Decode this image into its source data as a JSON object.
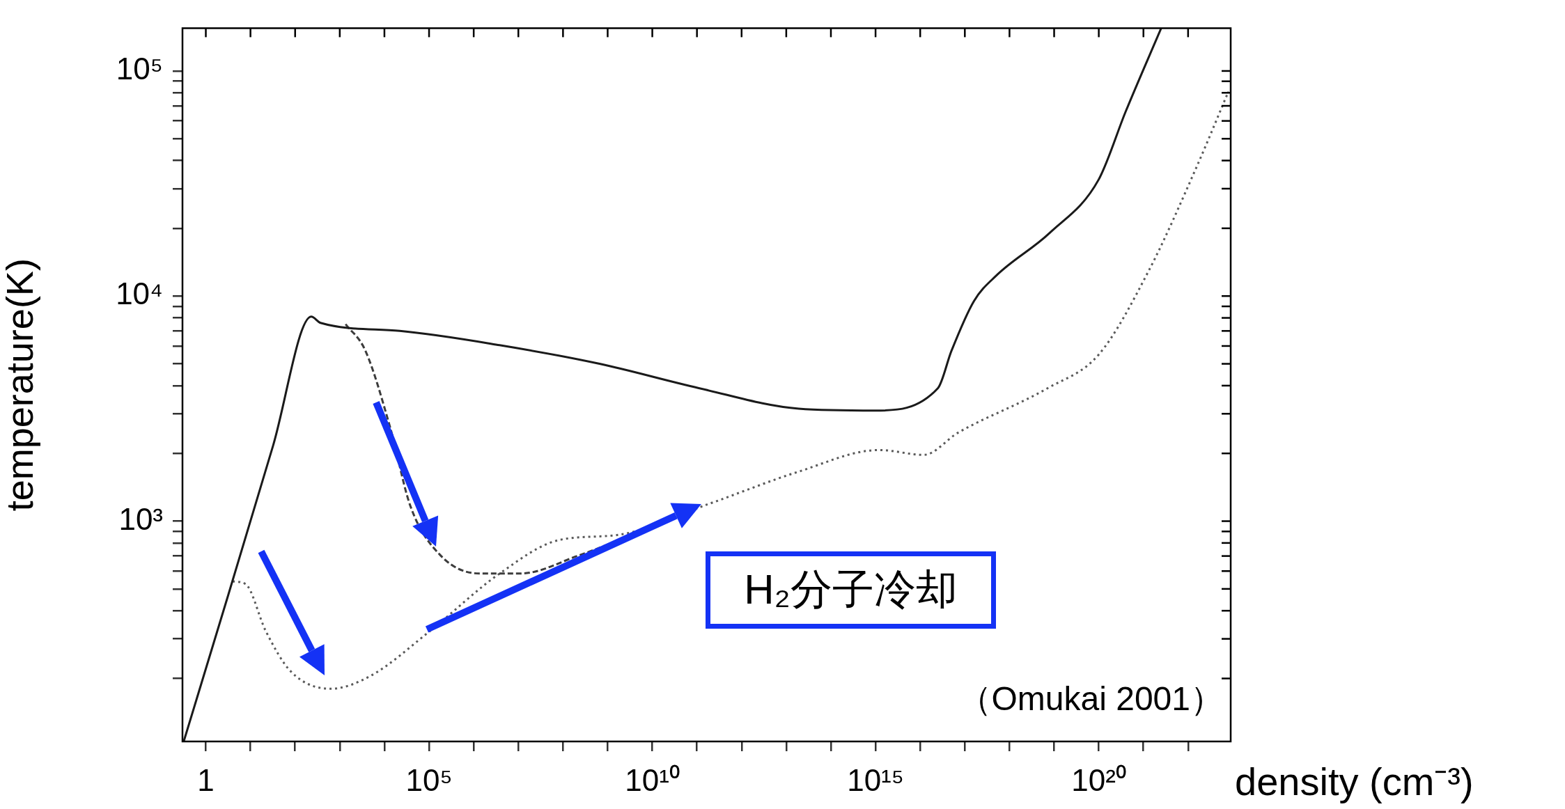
{
  "chart_data": {
    "type": "line",
    "xlabel": "density (cm⁻³)",
    "ylabel": "temperature(K)",
    "annotations": [
      "H₂分子冷却",
      "（Omukai 2001）"
    ],
    "log": "xy",
    "grid": false,
    "legend": false,
    "marker": "none",
    "xlim": [
      0.32,
      9e+22
    ],
    "ylim": [
      105,
      155000
    ],
    "xticks": [
      {
        "value": 1,
        "label": "1"
      },
      {
        "value": 10,
        "label": null
      },
      {
        "value": 100,
        "label": null
      },
      {
        "value": 1000,
        "label": null
      },
      {
        "value": 10000,
        "label": null
      },
      {
        "value": 100000.0,
        "label": "10⁵"
      },
      {
        "value": 1000000.0,
        "label": null
      },
      {
        "value": 10000000.0,
        "label": null
      },
      {
        "value": 100000000.0,
        "label": null
      },
      {
        "value": 1000000000.0,
        "label": null
      },
      {
        "value": 10000000000.0,
        "label": "10¹⁰"
      },
      {
        "value": 100000000000.0,
        "label": null
      },
      {
        "value": 1000000000000.0,
        "label": null
      },
      {
        "value": 10000000000000.0,
        "label": null
      },
      {
        "value": 100000000000000.0,
        "label": null
      },
      {
        "value": 1000000000000000.0,
        "label": "10¹⁵"
      },
      {
        "value": 1e+16,
        "label": null
      },
      {
        "value": 1e+17,
        "label": null
      },
      {
        "value": 1e+18,
        "label": null
      },
      {
        "value": 1e+19,
        "label": null
      },
      {
        "value": 1e+20,
        "label": "10²⁰"
      },
      {
        "value": 1e+21,
        "label": null
      },
      {
        "value": 1e+22,
        "label": null
      }
    ],
    "yticks": [
      {
        "value": 200,
        "label": null
      },
      {
        "value": 300,
        "label": null
      },
      {
        "value": 400,
        "label": null
      },
      {
        "value": 500,
        "label": null
      },
      {
        "value": 600,
        "label": null
      },
      {
        "value": 700,
        "label": null
      },
      {
        "value": 800,
        "label": null
      },
      {
        "value": 900,
        "label": null
      },
      {
        "value": 1000,
        "label": "10³"
      },
      {
        "value": 2000,
        "label": null
      },
      {
        "value": 3000,
        "label": null
      },
      {
        "value": 4000,
        "label": null
      },
      {
        "value": 5000,
        "label": null
      },
      {
        "value": 6000,
        "label": null
      },
      {
        "value": 7000,
        "label": null
      },
      {
        "value": 8000,
        "label": null
      },
      {
        "value": 9000,
        "label": null
      },
      {
        "value": 10000,
        "label": "10⁴"
      },
      {
        "value": 20000,
        "label": null
      },
      {
        "value": 30000,
        "label": null
      },
      {
        "value": 40000,
        "label": null
      },
      {
        "value": 50000,
        "label": null
      },
      {
        "value": 60000,
        "label": null
      },
      {
        "value": 70000,
        "label": null
      },
      {
        "value": 80000,
        "label": null
      },
      {
        "value": 90000,
        "label": null
      },
      {
        "value": 100000,
        "label": "10⁵"
      }
    ],
    "series": [
      {
        "color": "#1a1a1a",
        "line_style": "solid",
        "x": [
          0.32,
          3.2,
          32,
          230,
          370,
          22000.0,
          3800000.0,
          660000000.0,
          110000000000.0,
          19000000000000.0,
          1000000000000000.0,
          2.5e+16,
          5e+16,
          1.6e+17,
          5e+17,
          8e+18,
          1e+20,
          4e+20,
          2.5e+21
        ],
        "values": [
          105,
          472,
          2160,
          8100,
          7600,
          7000,
          6050,
          5000,
          3900,
          3160,
          3100,
          3900,
          5700,
          9500,
          12300,
          19100,
          33000,
          66000,
          155000
        ]
      },
      {
        "color": "#3c3c3c",
        "line_style": "dashed",
        "x": [
          1350,
          3700,
          13500.0,
          38000.0,
          180000.0,
          1400000.0,
          11000000.0,
          230000000.0,
          2000000000.0
        ],
        "values": [
          7500,
          5750,
          2600,
          1170,
          705,
          585,
          585,
          705,
          830
        ]
      },
      {
        "color": "#5a5a5a",
        "line_style": "dotted",
        "x": [
          4,
          7.8,
          22,
          80,
          620,
          4800,
          105000.0,
          3800000.0,
          83000000.0,
          1800000000.0,
          200000000000.0,
          19000000000000.0,
          1200000000000000.0,
          1.2e+16,
          7e+16,
          7.2e+18,
          1e+20,
          1.3e+21,
          1.6e+22,
          8e+22
        ],
        "values": [
          540,
          525,
          325,
          215,
          180,
          205,
          325,
          585,
          825,
          870,
          1200,
          1660,
          2070,
          1970,
          2470,
          3900,
          5500,
          12900,
          38000,
          81000
        ]
      }
    ]
  }
}
